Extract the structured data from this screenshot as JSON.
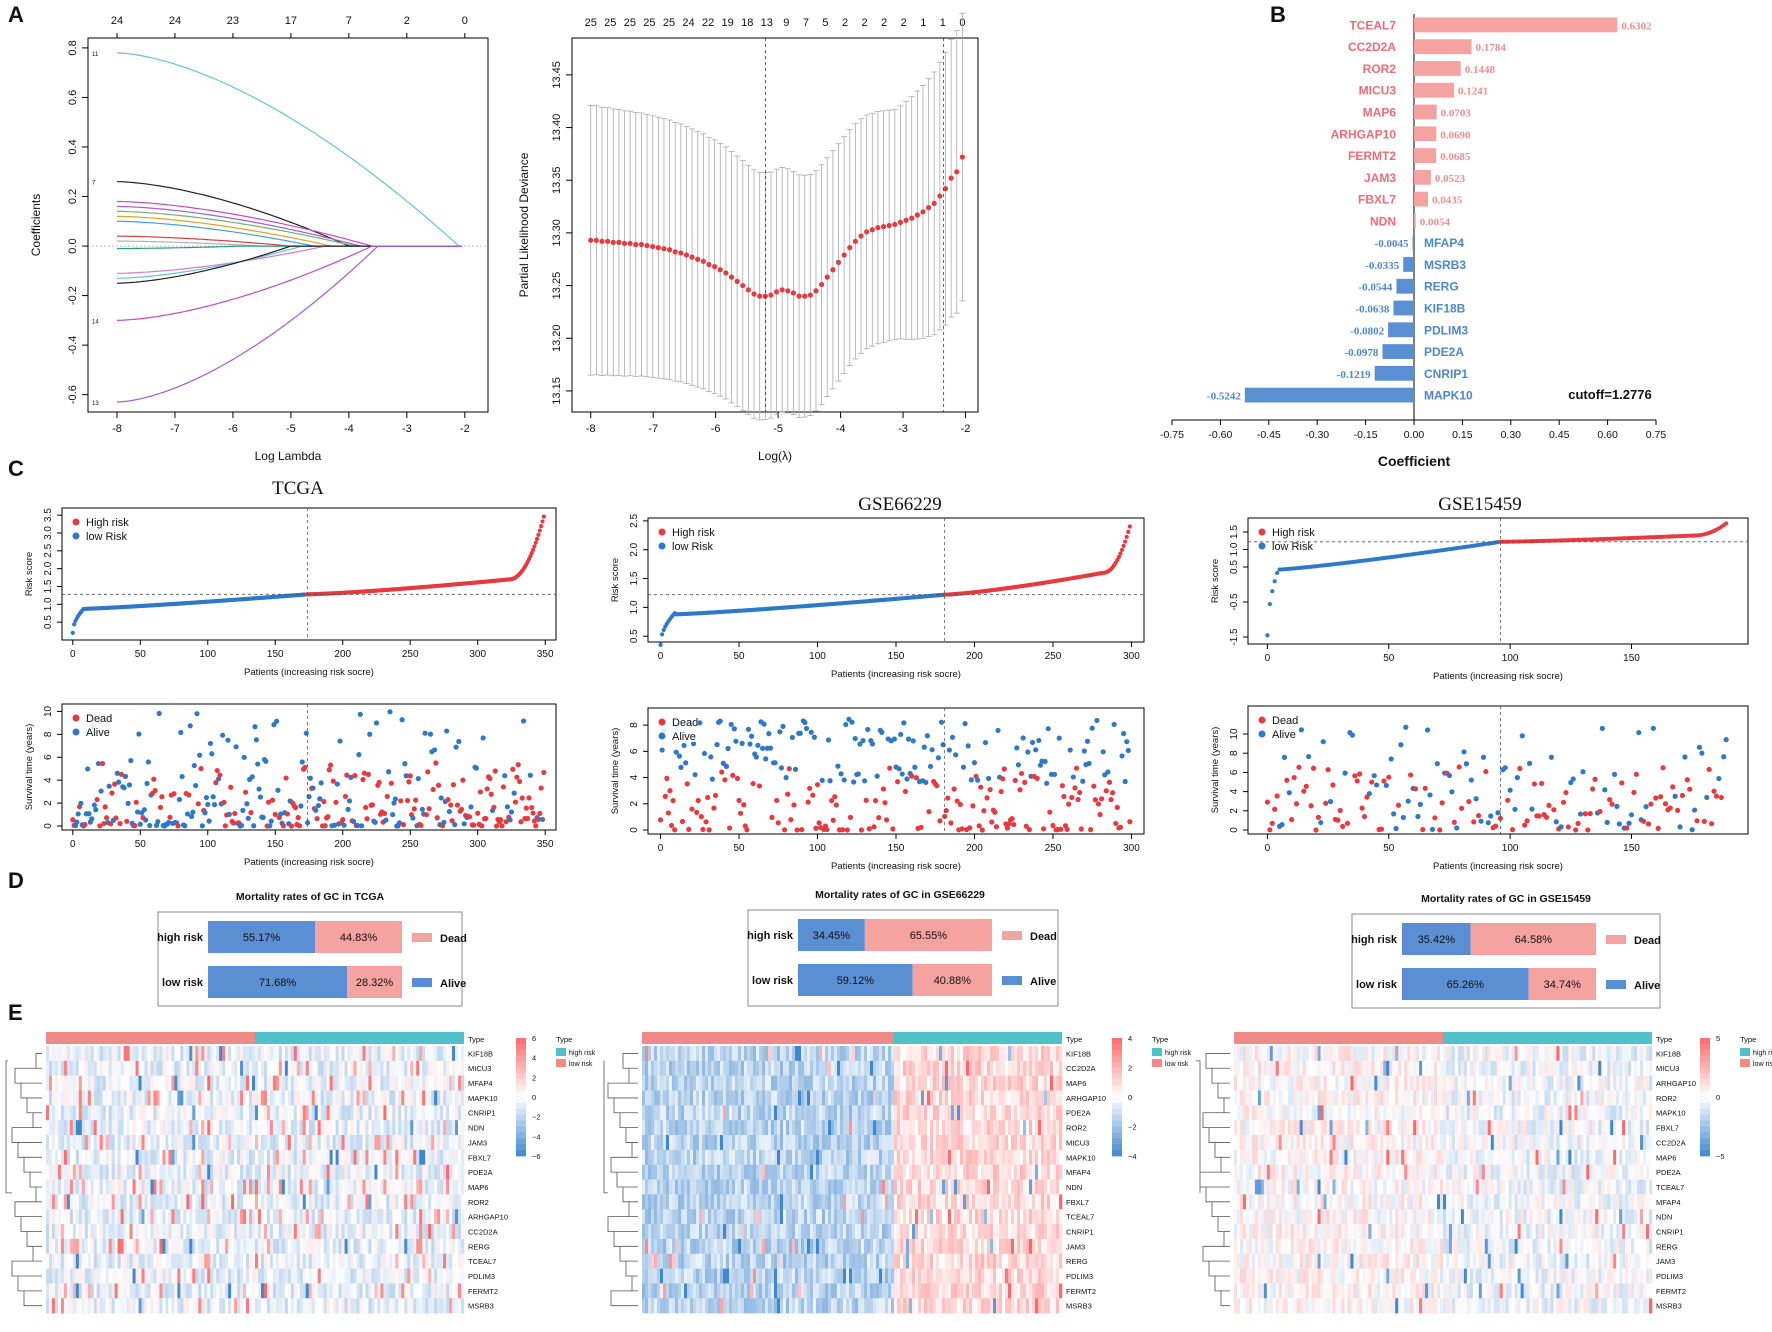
{
  "panel_labels": {
    "A": "A",
    "B": "B",
    "C": "C",
    "D": "D",
    "E": "E"
  },
  "colors": {
    "red": "#e8393f",
    "blue": "#2e78c7",
    "pink": "#f29a98",
    "steel": "#5b8fd4",
    "bar_red": "#f4a3a1",
    "bar_blue": "#5b8fd4",
    "heat_red": "#d94040",
    "heat_blue": "#3b82c4",
    "lasso_curves": [
      "#62c4d0",
      "#222222",
      "#c04dbf",
      "#a55bd0",
      "#6bb66b",
      "#e6a020",
      "#3da0e0",
      "#d04040",
      "#b0b0b0",
      "#20a080",
      "#d080c0"
    ]
  },
  "chart_data": [
    {
      "id": "A1",
      "type": "line",
      "xlabel": "Log Lambda",
      "ylabel": "Coefficients",
      "xlim": [
        -8.5,
        -1.6
      ],
      "ylim": [
        -0.67,
        0.84
      ],
      "xticks": [
        -8,
        -7,
        -6,
        -5,
        -4,
        -3,
        -2
      ],
      "yticks": [
        -0.6,
        -0.4,
        -0.2,
        0.0,
        0.2,
        0.4,
        0.6,
        0.8
      ],
      "top_ticks": {
        "x": [
          -8,
          -7,
          -6,
          -5,
          -4,
          -3,
          -2
        ],
        "labels": [
          "24",
          "24",
          "23",
          "17",
          "7",
          "2",
          "0"
        ]
      },
      "left_labels": [
        "11",
        "7",
        "14",
        "13"
      ],
      "series": [
        {
          "name": "11",
          "start": 0.78,
          "zero_at": -2.1
        },
        {
          "name": "7",
          "start": 0.26,
          "zero_at": -4.0
        },
        {
          "name": "a",
          "start": 0.18,
          "zero_at": -3.6
        },
        {
          "name": "b",
          "start": 0.16,
          "zero_at": -3.8
        },
        {
          "name": "c",
          "start": 0.14,
          "zero_at": -3.9
        },
        {
          "name": "d",
          "start": 0.12,
          "zero_at": -4.3
        },
        {
          "name": "e",
          "start": 0.1,
          "zero_at": -4.6
        },
        {
          "name": "f",
          "start": 0.04,
          "zero_at": -5.0
        },
        {
          "name": "g",
          "start": 0.02,
          "zero_at": -5.5
        },
        {
          "name": "h",
          "start": -0.01,
          "zero_at": -5.8
        },
        {
          "name": "i",
          "start": -0.11,
          "zero_at": -4.4
        },
        {
          "name": "j",
          "start": -0.13,
          "zero_at": -4.8
        },
        {
          "name": "k",
          "start": -0.15,
          "zero_at": -5.0
        },
        {
          "name": "14",
          "start": -0.3,
          "zero_at": -3.6
        },
        {
          "name": "13",
          "start": -0.63,
          "zero_at": -3.5
        }
      ]
    },
    {
      "id": "A2",
      "type": "scatter",
      "xlabel": "Log(λ)",
      "ylabel": "Partial Likelihood Deviance",
      "xlim": [
        -8.3,
        -1.8
      ],
      "ylim": [
        13.13,
        13.485
      ],
      "xticks": [
        -8,
        -7,
        -6,
        -5,
        -4,
        -3,
        -2
      ],
      "yticks": [
        13.15,
        13.2,
        13.25,
        13.3,
        13.35,
        13.4,
        13.45
      ],
      "ytick_labels": [
        "13.15",
        "13.20",
        "13.25",
        "13.30",
        "13.35",
        "13.40",
        "13.45"
      ],
      "top_ticks": {
        "labels": [
          "25",
          "25",
          "25",
          "25",
          "25",
          "24",
          "22",
          "19",
          "18",
          "13",
          "9",
          "7",
          "5",
          "2",
          "2",
          "2",
          "2",
          "1",
          "1",
          "0"
        ]
      },
      "vlines": [
        -5.2,
        -2.35
      ],
      "points": {
        "x_start": -8.0,
        "x_end": -2.05,
        "means": [
          13.293,
          13.293,
          13.292,
          13.292,
          13.291,
          13.291,
          13.29,
          13.29,
          13.289,
          13.289,
          13.288,
          13.287,
          13.286,
          13.285,
          13.284,
          13.282,
          13.281,
          13.279,
          13.277,
          13.275,
          13.273,
          13.27,
          13.268,
          13.265,
          13.262,
          13.258,
          13.254,
          13.25,
          13.246,
          13.242,
          13.24,
          13.24,
          13.241,
          13.244,
          13.246,
          13.245,
          13.243,
          13.24,
          13.24,
          13.241,
          13.245,
          13.251,
          13.258,
          13.265,
          13.272,
          13.279,
          13.286,
          13.292,
          13.297,
          13.301,
          13.303,
          13.305,
          13.306,
          13.307,
          13.308,
          13.31,
          13.312,
          13.314,
          13.317,
          13.32,
          13.324,
          13.328,
          13.335,
          13.342,
          13.352,
          13.358,
          13.372
        ],
        "halfwidth_start": 0.128,
        "halfwidth_end": 0.105
      }
    },
    {
      "id": "B",
      "type": "bar",
      "title": "",
      "xlabel": "Coefficient",
      "annotation": "cutoff=1.2776",
      "xlim": [
        -0.75,
        0.75
      ],
      "xticks": [
        "-0.75",
        "-0.60",
        "-0.45",
        "-0.30",
        "-0.15",
        "0.00",
        "0.15",
        "0.30",
        "0.45",
        "0.60",
        "0.75"
      ],
      "categories": [
        "TCEAL7",
        "CC2D2A",
        "ROR2",
        "MICU3",
        "MAP6",
        "ARHGAP10",
        "FERMT2",
        "JAM3",
        "FBXL7",
        "NDN",
        "MFAP4",
        "MSRB3",
        "RERG",
        "KIF18B",
        "PDLIM3",
        "PDE2A",
        "CNRIP1",
        "MAPK10"
      ],
      "values": [
        0.6302,
        0.1784,
        0.1448,
        0.1241,
        0.0703,
        0.069,
        0.0685,
        0.0523,
        0.0435,
        0.0054,
        -0.0045,
        -0.0335,
        -0.0544,
        -0.0638,
        -0.0802,
        -0.0978,
        -0.1219,
        -0.5242
      ],
      "value_labels": [
        "0.6302",
        "0.1784",
        "0.1448",
        "0.1241",
        "0.0703",
        "0.0690",
        "0.0685",
        "0.0523",
        "0.0435",
        "0.0054",
        "-0.0045",
        "-0.0335",
        "-0.0544",
        "-0.0638",
        "-0.0802",
        "-0.0978",
        "-0.1219",
        "-0.5242"
      ]
    }
  ],
  "risk_panels": [
    {
      "title": "TCGA",
      "n": 350,
      "cut": 174,
      "threshold": 1.28,
      "score": {
        "ylabel": "Risk score",
        "xlabel": "Patients (increasing risk socre)",
        "ylim": [
          0.0,
          3.7
        ],
        "yticks": [
          "0.5",
          "1.0",
          "1.5",
          "2.0",
          "2.5",
          "3.0",
          "3.5"
        ],
        "ytick_vals": [
          0.5,
          1.0,
          1.5,
          2.0,
          2.5,
          3.0,
          3.5
        ],
        "xticks": [
          0,
          50,
          100,
          150,
          200,
          250,
          300,
          350
        ],
        "min": 0.2,
        "knee_low": 0.9,
        "mid": 1.28,
        "knee_high": 1.7,
        "max": 3.6,
        "legend": [
          "High risk",
          "low Risk"
        ]
      },
      "surv": {
        "ylabel": "Survival time (years)",
        "xlabel": "Patients (increasing risk socre)",
        "ylim": [
          0,
          10.3
        ],
        "yticks": [
          "0",
          "2",
          "4",
          "6",
          "8",
          "10"
        ],
        "ytick_vals": [
          0,
          2,
          4,
          6,
          8,
          10
        ],
        "xticks": [
          0,
          50,
          100,
          150,
          200,
          250,
          300,
          350
        ],
        "legend": [
          "Dead",
          "Alive"
        ],
        "maxy": 10,
        "dead_frac": 0.5,
        "seed": 11
      }
    },
    {
      "title": "GSE66229",
      "n": 300,
      "cut": 181,
      "threshold": 1.22,
      "score": {
        "ylabel": "Risk score",
        "xlabel": "Patients (increasing risk socre)",
        "ylim": [
          0.4,
          2.55
        ],
        "yticks": [
          "0.5",
          "1.0",
          "1.5",
          "2.0",
          "2.5"
        ],
        "ytick_vals": [
          0.5,
          1.0,
          1.5,
          2.0,
          2.5
        ],
        "xticks": [
          0,
          50,
          100,
          150,
          200,
          250,
          300
        ],
        "min": 0.35,
        "knee_low": 0.9,
        "mid": 1.22,
        "knee_high": 1.6,
        "max": 2.5,
        "legend": [
          "High risk",
          "low Risk"
        ]
      },
      "surv": {
        "ylabel": "Survival time (years)",
        "xlabel": "Patients (increasing risk socre)",
        "ylim": [
          0,
          9
        ],
        "yticks": [
          "0",
          "2",
          "4",
          "6",
          "8"
        ],
        "ytick_vals": [
          0,
          2,
          4,
          6,
          8
        ],
        "xticks": [
          0,
          50,
          100,
          150,
          200,
          250,
          300
        ],
        "legend": [
          "Dead",
          "Alive"
        ],
        "maxy": 8.6,
        "dead_frac": 0.5,
        "seed": 23
      }
    },
    {
      "title": "GSE15459",
      "n": 190,
      "cut": 96,
      "threshold": 1.22,
      "score": {
        "ylabel": "Risk score",
        "xlabel": "Patients (increasing risk socre)",
        "ylim": [
          -1.7,
          1.9
        ],
        "yticks": [
          "-1.5",
          "-0.5",
          "0.5",
          "1.0",
          "1.5"
        ],
        "ytick_vals": [
          -1.5,
          -0.5,
          0.5,
          1.0,
          1.5
        ],
        "xticks": [
          0,
          50,
          100,
          150
        ],
        "min": -1.45,
        "knee_low": 0.5,
        "mid": 1.22,
        "knee_high": 1.4,
        "max": 1.8,
        "legend": [
          "High risk",
          "low Risk"
        ]
      },
      "surv": {
        "ylabel": "Survival time (years)",
        "xlabel": "Patients (increasing risk socre)",
        "ylim": [
          0,
          12.5
        ],
        "yticks": [
          "0",
          "2",
          "4",
          "6",
          "8",
          "10"
        ],
        "ytick_vals": [
          0,
          2,
          4,
          6,
          8,
          10
        ],
        "xticks": [
          0,
          50,
          100,
          150
        ],
        "legend": [
          "Dead",
          "Alive"
        ],
        "maxy": 12,
        "dead_frac": 0.5,
        "seed": 37
      }
    }
  ],
  "mortality": [
    {
      "title": "Mortality rates of GC in TCGA",
      "rows": [
        {
          "label": "high risk",
          "alive": 55.17,
          "dead": 44.83,
          "alive_label": "55.17%",
          "dead_label": "44.83%"
        },
        {
          "label": "low risk",
          "alive": 71.68,
          "dead": 28.32,
          "alive_label": "71.68%",
          "dead_label": "28.32%"
        }
      ],
      "legend": [
        "Dead",
        "Alive"
      ]
    },
    {
      "title": "Mortality rates of GC in GSE66229",
      "rows": [
        {
          "label": "high risk",
          "alive": 34.45,
          "dead": 65.55,
          "alive_label": "34.45%",
          "dead_label": "65.55%"
        },
        {
          "label": "low risk",
          "alive": 59.12,
          "dead": 40.88,
          "alive_label": "59.12%",
          "dead_label": "40.88%"
        }
      ],
      "legend": [
        "Dead",
        "Alive"
      ]
    },
    {
      "title": "Mortality rates of GC in GSE15459",
      "rows": [
        {
          "label": "high risk",
          "alive": 35.42,
          "dead": 64.58,
          "alive_label": "35.42%",
          "dead_label": "64.58%"
        },
        {
          "label": "low risk",
          "alive": 65.26,
          "dead": 34.74,
          "alive_label": "65.26%",
          "dead_label": "34.74%"
        }
      ],
      "legend": [
        "Dead",
        "Alive"
      ]
    }
  ],
  "heatmaps": [
    {
      "genes": [
        "KIF18B",
        "MICU3",
        "MFAP4",
        "MAPK10",
        "CNRIP1",
        "NDN",
        "JAM3",
        "FBXL7",
        "PDE2A",
        "MAP6",
        "ROR2",
        "ARHGAP10",
        "CC2D2A",
        "RERG",
        "TCEAL7",
        "PDLIM3",
        "FERMT2",
        "MSRB3"
      ],
      "scale": {
        "ticks": [
          "6",
          "4",
          "2",
          "0",
          "−2",
          "−4",
          "−6"
        ]
      },
      "high_frac": 0.5,
      "seed": 5,
      "type_label": "Type",
      "legend_items": [
        "high risk",
        "low risk"
      ]
    },
    {
      "genes": [
        "KIF18B",
        "CC2D2A",
        "MAP6",
        "ARHGAP10",
        "PDE2A",
        "ROR2",
        "MICU3",
        "MAPK10",
        "MFAP4",
        "NDN",
        "FBXL7",
        "TCEAL7",
        "CNRIP1",
        "JAM3",
        "RERG",
        "PDLIM3",
        "FERMT2",
        "MSRB3"
      ],
      "scale": {
        "ticks": [
          "4",
          "2",
          "0",
          "−2",
          "−4"
        ]
      },
      "high_frac": 0.6,
      "seed": 9,
      "type_label": "Type",
      "legend_items": [
        "high risk",
        "low risk"
      ]
    },
    {
      "genes": [
        "KIF18B",
        "MICU3",
        "ARHGAP10",
        "ROR2",
        "MAPK10",
        "FBXL7",
        "CC2D2A",
        "MAP6",
        "PDE2A",
        "TCEAL7",
        "MFAP4",
        "NDN",
        "CNRIP1",
        "RERG",
        "JAM3",
        "PDLIM3",
        "FERMT2",
        "MSRB3"
      ],
      "scale": {
        "ticks": [
          "5",
          "0",
          "−5"
        ]
      },
      "high_frac": 0.5,
      "seed": 13,
      "type_label": "Type",
      "legend_items": [
        "high risk",
        "low risk"
      ]
    }
  ]
}
